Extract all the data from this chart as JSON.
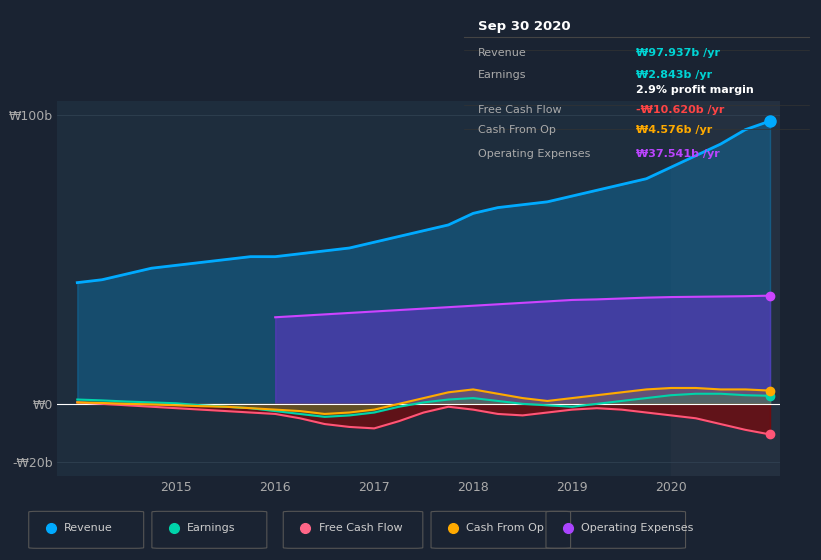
{
  "bg_color": "#1a2332",
  "plot_bg_color": "#1e2d3d",
  "info_box": {
    "title": "Sep 30 2020",
    "rows": [
      {
        "label": "Revenue",
        "value": "₩97.937b /yr",
        "value_color": "#00d4d4"
      },
      {
        "label": "Earnings",
        "value": "₩2.843b /yr",
        "value_color": "#00d4d4"
      },
      {
        "label": "",
        "value": "2.9% profit margin",
        "value_color": "#ffffff"
      },
      {
        "label": "Free Cash Flow",
        "value": "-₩10.620b /yr",
        "value_color": "#ff4444"
      },
      {
        "label": "Cash From Op",
        "value": "₩4.576b /yr",
        "value_color": "#ffaa00"
      },
      {
        "label": "Operating Expenses",
        "value": "₩37.541b /yr",
        "value_color": "#bb44ff"
      }
    ]
  },
  "legend": [
    {
      "label": "Revenue",
      "color": "#00aaff"
    },
    {
      "label": "Earnings",
      "color": "#00d4aa"
    },
    {
      "label": "Free Cash Flow",
      "color": "#ff6688"
    },
    {
      "label": "Cash From Op",
      "color": "#ffaa00"
    },
    {
      "label": "Operating Expenses",
      "color": "#aa44ff"
    }
  ],
  "x_years": [
    2014.0,
    2014.25,
    2014.5,
    2014.75,
    2015.0,
    2015.25,
    2015.5,
    2015.75,
    2016.0,
    2016.25,
    2016.5,
    2016.75,
    2017.0,
    2017.25,
    2017.5,
    2017.75,
    2018.0,
    2018.25,
    2018.5,
    2018.75,
    2019.0,
    2019.25,
    2019.5,
    2019.75,
    2020.0,
    2020.25,
    2020.5,
    2020.75,
    2021.0
  ],
  "revenue": [
    42,
    43,
    45,
    47,
    48,
    49,
    50,
    51,
    51,
    52,
    53,
    54,
    56,
    58,
    60,
    62,
    66,
    68,
    69,
    70,
    72,
    74,
    76,
    78,
    82,
    86,
    90,
    95,
    98
  ],
  "earnings": [
    1.5,
    1.2,
    0.8,
    0.5,
    0.2,
    -0.5,
    -1.0,
    -1.5,
    -2.5,
    -3.5,
    -4.5,
    -4.0,
    -3.0,
    -1.0,
    0.5,
    1.5,
    2.0,
    1.0,
    0.0,
    -0.5,
    -1.0,
    0.0,
    1.0,
    2.0,
    3.0,
    3.5,
    3.5,
    3.0,
    2.8
  ],
  "free_cash_flow": [
    0.5,
    0.0,
    -0.5,
    -1.0,
    -1.5,
    -2.0,
    -2.5,
    -3.0,
    -3.5,
    -5.0,
    -7.0,
    -8.0,
    -8.5,
    -6.0,
    -3.0,
    -1.0,
    -2.0,
    -3.5,
    -4.0,
    -3.0,
    -2.0,
    -1.5,
    -2.0,
    -3.0,
    -4.0,
    -5.0,
    -7.0,
    -9.0,
    -10.6
  ],
  "cash_from_op": [
    0.5,
    0.3,
    0.0,
    -0.2,
    -0.5,
    -0.8,
    -1.0,
    -1.5,
    -2.0,
    -2.5,
    -3.5,
    -3.0,
    -2.0,
    0.0,
    2.0,
    4.0,
    5.0,
    3.5,
    2.0,
    1.0,
    2.0,
    3.0,
    4.0,
    5.0,
    5.5,
    5.5,
    5.0,
    5.0,
    4.6
  ],
  "operating_expenses": [
    0,
    0,
    0,
    0,
    0,
    0,
    0,
    0,
    30,
    30.5,
    31,
    31.5,
    32,
    32.5,
    33,
    33.5,
    34,
    34.5,
    35,
    35.5,
    36,
    36.2,
    36.5,
    36.8,
    37,
    37.1,
    37.2,
    37.3,
    37.5
  ],
  "x_start_opex": 2016.0,
  "highlight_x_start": 2020.0,
  "highlight_x_end": 2021.1,
  "xlim": [
    2013.8,
    2021.1
  ],
  "ylim": [
    -25,
    105
  ]
}
